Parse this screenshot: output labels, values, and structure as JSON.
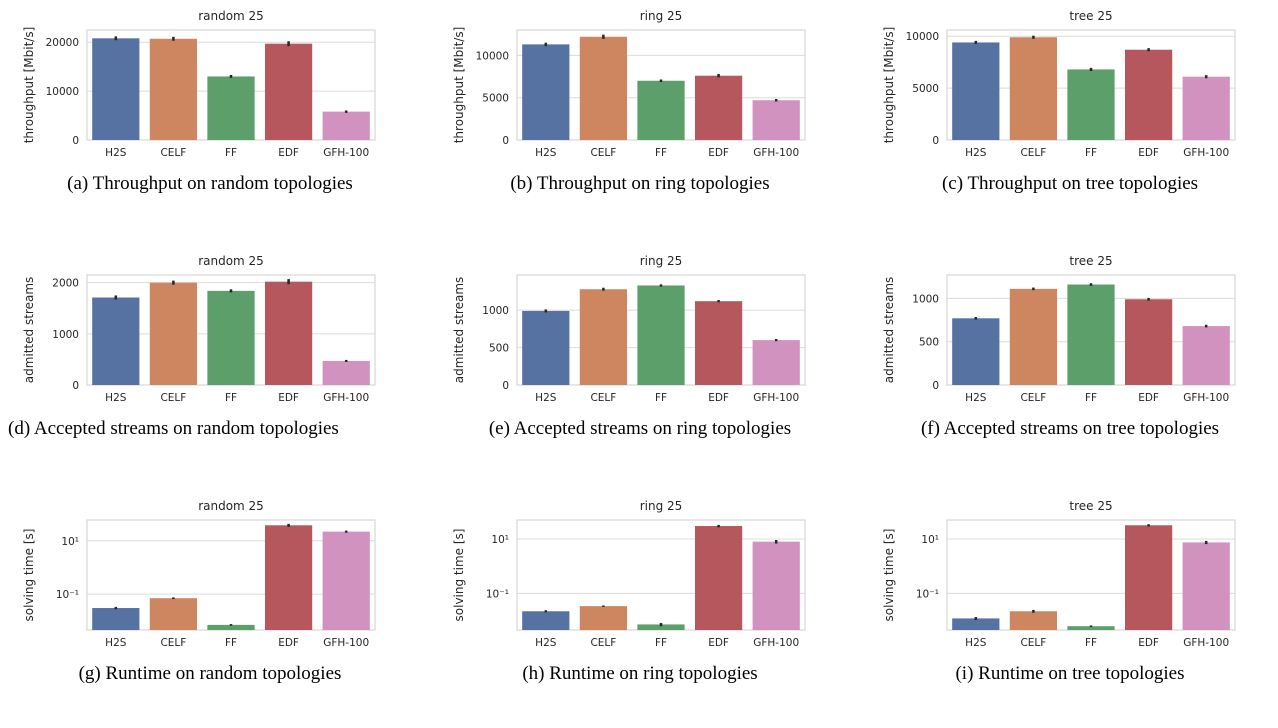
{
  "figure": {
    "categories": [
      "H2S",
      "CELF",
      "FF",
      "EDF",
      "GFH-100"
    ],
    "colors": [
      "#5572a3",
      "#cd865f",
      "#5c9f6a",
      "#b5575c",
      "#d192c0"
    ]
  },
  "chart_data": [
    {
      "type": "bar",
      "title": "random 25",
      "ylabel": "throughput [Mbit/s]",
      "scale": "linear",
      "ylim": [
        0,
        22500
      ],
      "yticks": [
        0,
        10000,
        20000
      ],
      "ytick_labels": [
        "0",
        "10000",
        "20000"
      ],
      "categories": [
        "H2S",
        "CELF",
        "FF",
        "EDF",
        "GFH-100"
      ],
      "values": [
        20800,
        20700,
        13000,
        19700,
        5800
      ],
      "errors": [
        400,
        400,
        300,
        500,
        250
      ],
      "caption": "(a) Throughput on random topologies"
    },
    {
      "type": "bar",
      "title": "ring 25",
      "ylabel": "throughput [Mbit/s]",
      "scale": "linear",
      "ylim": [
        0,
        13000
      ],
      "yticks": [
        0,
        5000,
        10000
      ],
      "ytick_labels": [
        "0",
        "5000",
        "10000"
      ],
      "categories": [
        "H2S",
        "CELF",
        "FF",
        "EDF",
        "GFH-100"
      ],
      "values": [
        11300,
        12200,
        7000,
        7600,
        4700
      ],
      "errors": [
        200,
        250,
        150,
        200,
        150
      ],
      "caption": "(b) Throughput on ring topologies"
    },
    {
      "type": "bar",
      "title": "tree 25",
      "ylabel": "throughput [Mbit/s]",
      "scale": "linear",
      "ylim": [
        0,
        10600
      ],
      "yticks": [
        0,
        5000,
        10000
      ],
      "ytick_labels": [
        "0",
        "5000",
        "10000"
      ],
      "categories": [
        "H2S",
        "CELF",
        "FF",
        "EDF",
        "GFH-100"
      ],
      "values": [
        9400,
        9900,
        6800,
        8700,
        6100
      ],
      "errors": [
        150,
        150,
        150,
        150,
        150
      ],
      "caption": "(c) Throughput on tree topologies"
    },
    {
      "type": "bar",
      "title": "random 25",
      "ylabel": "admitted streams",
      "scale": "linear",
      "ylim": [
        0,
        2150
      ],
      "yticks": [
        0,
        1000,
        2000
      ],
      "ytick_labels": [
        "0",
        "1000",
        "2000"
      ],
      "categories": [
        "H2S",
        "CELF",
        "FF",
        "EDF",
        "GFH-100"
      ],
      "values": [
        1710,
        2000,
        1840,
        2020,
        470
      ],
      "errors": [
        40,
        40,
        30,
        50,
        20
      ],
      "caption": "(d) Accepted streams on random topologies"
    },
    {
      "type": "bar",
      "title": "ring 25",
      "ylabel": "admitted streams",
      "scale": "linear",
      "ylim": [
        0,
        1470
      ],
      "yticks": [
        0,
        500,
        1000
      ],
      "ytick_labels": [
        "0",
        "500",
        "1000"
      ],
      "categories": [
        "H2S",
        "CELF",
        "FF",
        "EDF",
        "GFH-100"
      ],
      "values": [
        990,
        1280,
        1330,
        1120,
        600
      ],
      "errors": [
        20,
        20,
        15,
        15,
        15
      ],
      "caption": "(e) Accepted streams on ring topologies"
    },
    {
      "type": "bar",
      "title": "tree 25",
      "ylabel": "admitted streams",
      "scale": "linear",
      "ylim": [
        0,
        1270
      ],
      "yticks": [
        0,
        500,
        1000
      ],
      "ytick_labels": [
        "0",
        "500",
        "1000"
      ],
      "categories": [
        "H2S",
        "CELF",
        "FF",
        "EDF",
        "GFH-100"
      ],
      "values": [
        770,
        1110,
        1160,
        990,
        680
      ],
      "errors": [
        15,
        15,
        15,
        15,
        15
      ],
      "caption": "(f) Accepted streams on tree topologies"
    },
    {
      "type": "bar",
      "title": "random 25",
      "ylabel": "solving time [s]",
      "scale": "log",
      "ylim": [
        0.0045,
        60
      ],
      "yticks": [
        0.1,
        10
      ],
      "ytick_labels": [
        "10⁻¹",
        "10¹"
      ],
      "categories": [
        "H2S",
        "CELF",
        "FF",
        "EDF",
        "GFH-100"
      ],
      "values": [
        0.03,
        0.07,
        0.007,
        38,
        22
      ],
      "errors": [
        0.003,
        0.005,
        0.0005,
        5,
        2
      ],
      "caption": "(g) Runtime on random topologies"
    },
    {
      "type": "bar",
      "title": "ring 25",
      "ylabel": "solving time [s]",
      "scale": "log",
      "ylim": [
        0.0045,
        50
      ],
      "yticks": [
        0.1,
        10
      ],
      "ytick_labels": [
        "10⁻¹",
        "10¹"
      ],
      "categories": [
        "H2S",
        "CELF",
        "FF",
        "EDF",
        "GFH-100"
      ],
      "values": [
        0.022,
        0.034,
        0.0072,
        30,
        8
      ],
      "errors": [
        0.002,
        0.002,
        0.001,
        3,
        1.2
      ],
      "caption": "(h) Runtime on ring topologies"
    },
    {
      "type": "bar",
      "title": "tree 25",
      "ylabel": "solving time [s]",
      "scale": "log",
      "ylim": [
        0.0045,
        50
      ],
      "yticks": [
        0.1,
        10
      ],
      "ytick_labels": [
        "10⁻¹",
        "10¹"
      ],
      "categories": [
        "H2S",
        "CELF",
        "FF",
        "EDF",
        "GFH-100"
      ],
      "values": [
        0.012,
        0.022,
        0.0062,
        32,
        7.5
      ],
      "errors": [
        0.0015,
        0.0025,
        0.0004,
        3,
        1
      ],
      "caption": "(i) Runtime on tree topologies"
    }
  ]
}
